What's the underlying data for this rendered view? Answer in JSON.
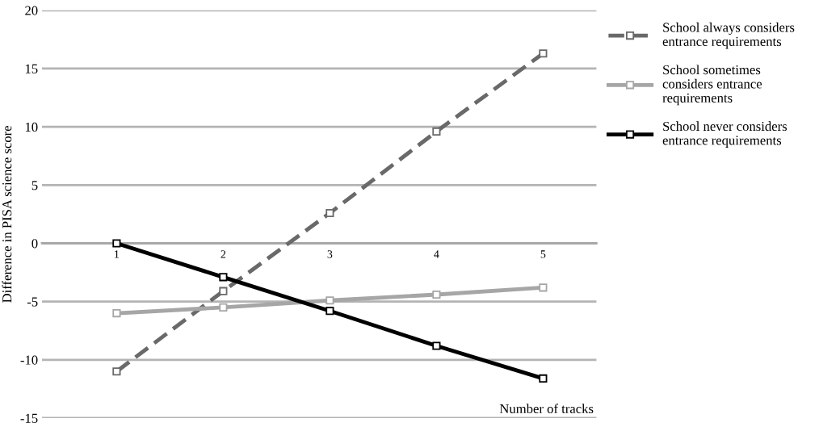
{
  "chart_data": {
    "type": "line",
    "xlabel": "Number of tracks",
    "ylabel": "Difference in PISA science score",
    "categories": [
      "1",
      "2",
      "3",
      "4",
      "5"
    ],
    "series": [
      {
        "name": "School always considers entrance requirements",
        "color": "#696969",
        "line_style": "dashed",
        "values": [
          -11.0,
          -4.1,
          2.6,
          9.6,
          16.3
        ]
      },
      {
        "name": "School sometimes considers entrance requirements",
        "color": "#a6a6a6",
        "line_style": "solid",
        "values": [
          -6.0,
          -5.5,
          -4.9,
          -4.4,
          -3.8
        ]
      },
      {
        "name": "School never considers entrance requirements",
        "color": "#000000",
        "line_style": "solid",
        "values": [
          0,
          -2.9,
          -5.8,
          -8.8,
          -11.6
        ]
      }
    ],
    "ylim": [
      -15,
      20
    ],
    "yticks": [
      -15,
      -10,
      -5,
      0,
      5,
      10,
      15,
      20
    ],
    "grid": "y",
    "legend": "right",
    "marker": "square"
  }
}
